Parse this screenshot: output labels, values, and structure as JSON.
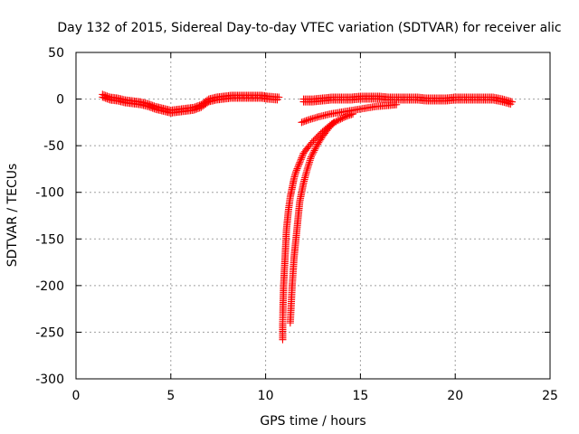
{
  "chart_data": {
    "type": "scatter",
    "title": "Day 132 of 2015, Sidereal Day-to-day VTEC variation (SDTVAR) for receiver alic",
    "xlabel": "GPS time / hours",
    "ylabel": "SDTVAR / TECUs",
    "xlim": [
      0,
      25
    ],
    "ylim": [
      -300,
      50
    ],
    "xticks": [
      0,
      5,
      10,
      15,
      20,
      25
    ],
    "yticks": [
      50,
      0,
      -50,
      -100,
      -150,
      -200,
      -250,
      -300
    ],
    "grid": true,
    "marker": "+",
    "color": "#ff0000",
    "series": [
      {
        "x": [
          1.4,
          1.8,
          2.2,
          2.6,
          3.0,
          3.4,
          3.8,
          4.2,
          4.6,
          5.0,
          5.4,
          5.8,
          6.2,
          6.6,
          7.0,
          7.4,
          7.8,
          8.2,
          8.6,
          9.0,
          9.4,
          9.8,
          10.1,
          10.7
        ],
        "y": [
          5,
          2,
          1,
          -1,
          -2,
          -3,
          -5,
          -8,
          -10,
          -12,
          -11,
          -10,
          -9,
          -6,
          0,
          2,
          3,
          4,
          4,
          4,
          4,
          4,
          3,
          2
        ]
      },
      {
        "x": [
          12.0,
          12.5,
          13.0,
          13.5,
          14.0,
          14.5,
          15.0,
          15.5,
          16.0,
          16.5,
          17.0,
          17.5,
          18.0,
          18.5,
          19.0,
          19.5,
          20.0,
          20.5,
          21.0,
          21.5,
          22.0,
          22.5,
          23.0
        ],
        "y": [
          0,
          0,
          1,
          2,
          2,
          2,
          3,
          3,
          3,
          2,
          2,
          2,
          2,
          1,
          1,
          1,
          2,
          2,
          2,
          2,
          2,
          0,
          -3
        ]
      },
      {
        "x": [
          10.9,
          10.9,
          10.92,
          10.95,
          11.0,
          11.05,
          11.1,
          11.2,
          11.3,
          11.4,
          11.5,
          11.6,
          11.8,
          12.0,
          12.3,
          12.6,
          13.0,
          13.4,
          13.8,
          14.2,
          14.6
        ],
        "y": [
          -258,
          -240,
          -220,
          -200,
          -180,
          -160,
          -140,
          -120,
          -105,
          -95,
          -85,
          -78,
          -68,
          -58,
          -50,
          -43,
          -35,
          -28,
          -23,
          -19,
          -16
        ]
      },
      {
        "x": [
          11.3,
          11.4,
          11.5,
          11.6,
          11.7,
          11.8,
          12.0,
          12.2,
          12.4,
          12.7,
          13.0,
          13.3,
          13.6
        ],
        "y": [
          -240,
          -200,
          -170,
          -150,
          -130,
          -110,
          -90,
          -75,
          -62,
          -50,
          -40,
          -32,
          -25
        ]
      },
      {
        "x": [
          11.9,
          12.3,
          12.8,
          13.4,
          14.0,
          14.6,
          15.2,
          15.8,
          16.4,
          16.9
        ],
        "y": [
          -25,
          -22,
          -19,
          -16,
          -14,
          -12,
          -10,
          -8,
          -7,
          -6
        ]
      }
    ]
  }
}
